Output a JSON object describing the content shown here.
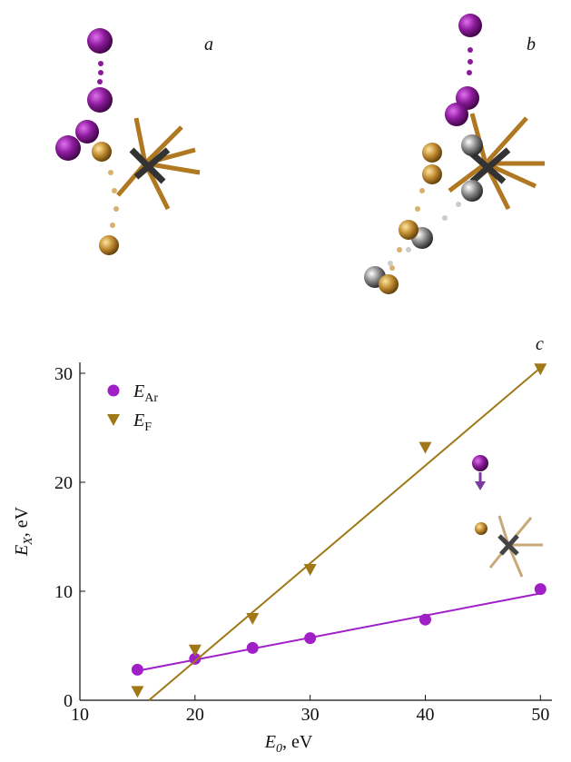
{
  "chart_data": {
    "type": "scatter",
    "panel_labels": [
      "a",
      "b",
      "c"
    ],
    "xlabel": {
      "main": "E",
      "sub": "0",
      "rest": ", eV"
    },
    "ylabel": {
      "main": "E",
      "sub": "X",
      "rest": ", eV"
    },
    "x": [
      15,
      20,
      25,
      30,
      40,
      50
    ],
    "series": [
      {
        "name": "E",
        "name_sub": "Ar",
        "color": "#a020c8",
        "marker": "circle",
        "values": [
          2.8,
          3.8,
          4.8,
          5.7,
          7.4,
          10.2
        ],
        "fit_x": [
          15,
          50
        ],
        "fit_values": [
          2.7,
          9.8
        ]
      },
      {
        "name": "E",
        "name_sub": "F",
        "color": "#a07818",
        "marker": "triangle-down",
        "values": [
          0.8,
          4.6,
          7.5,
          12.0,
          23.2,
          30.4
        ],
        "fit_x": [
          16,
          50
        ],
        "fit_values": [
          0,
          30.5
        ]
      }
    ],
    "xlim": [
      10,
      51
    ],
    "ylim": [
      0,
      31
    ],
    "xticks": [
      10,
      20,
      30,
      40,
      50
    ],
    "yticks": [
      0,
      10,
      20,
      30
    ],
    "legend": "upper left"
  }
}
